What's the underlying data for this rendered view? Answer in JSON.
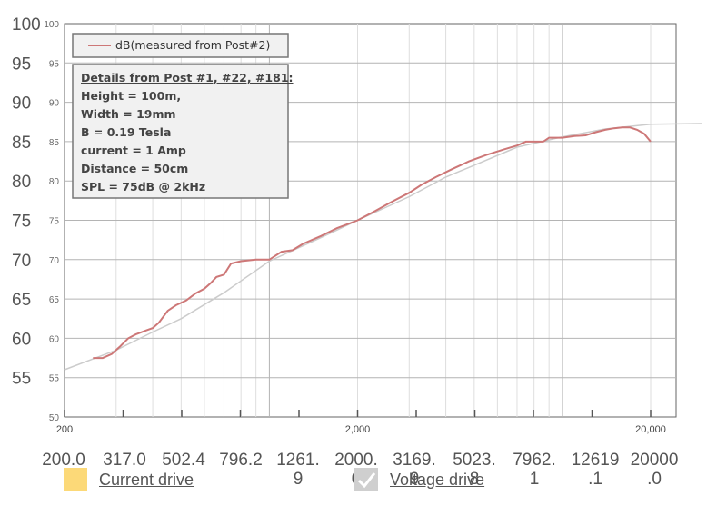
{
  "chart_data": {
    "type": "line",
    "x_scale": "log",
    "xlim": [
      200,
      20000
    ],
    "ylim": [
      50,
      100
    ],
    "grid": true,
    "y_ticks_big": [
      "100",
      "95",
      "90",
      "85",
      "80",
      "75",
      "70",
      "65",
      "60",
      "55"
    ],
    "y_ticks_small": [
      "100",
      "95",
      "90",
      "85",
      "80",
      "75",
      "70",
      "65",
      "60",
      "55",
      "50"
    ],
    "x_tick_labels": [
      {
        "value": 200,
        "label": "200"
      },
      {
        "value": 2000,
        "label": "2,000"
      },
      {
        "value": 20000,
        "label": "20,000"
      }
    ],
    "legend_placement": "top-left",
    "series": [
      {
        "name": "dB(measured from Post#2)",
        "color": "#cd7777",
        "points": [
          [
            250,
            57.5
          ],
          [
            270,
            57.5
          ],
          [
            290,
            58.0
          ],
          [
            310,
            59.0
          ],
          [
            330,
            60.0
          ],
          [
            350,
            60.5
          ],
          [
            380,
            61.0
          ],
          [
            400,
            61.3
          ],
          [
            420,
            62.0
          ],
          [
            450,
            63.5
          ],
          [
            480,
            64.2
          ],
          [
            520,
            64.8
          ],
          [
            560,
            65.7
          ],
          [
            600,
            66.3
          ],
          [
            630,
            67.0
          ],
          [
            660,
            67.8
          ],
          [
            700,
            68.1
          ],
          [
            740,
            69.5
          ],
          [
            800,
            69.8
          ],
          [
            900,
            70.0
          ],
          [
            1000,
            70.0
          ],
          [
            1100,
            71.0
          ],
          [
            1200,
            71.2
          ],
          [
            1300,
            72.0
          ],
          [
            1500,
            73.0
          ],
          [
            1700,
            74.0
          ],
          [
            2000,
            75.0
          ],
          [
            2300,
            76.2
          ],
          [
            2600,
            77.3
          ],
          [
            3000,
            78.5
          ],
          [
            3300,
            79.5
          ],
          [
            3700,
            80.5
          ],
          [
            4200,
            81.5
          ],
          [
            4800,
            82.5
          ],
          [
            5500,
            83.3
          ],
          [
            6300,
            84.0
          ],
          [
            7000,
            84.5
          ],
          [
            7500,
            85.0
          ],
          [
            8000,
            85.0
          ],
          [
            8600,
            85.0
          ],
          [
            9000,
            85.5
          ],
          [
            10000,
            85.5
          ],
          [
            11000,
            85.7
          ],
          [
            12000,
            85.8
          ],
          [
            13000,
            86.2
          ],
          [
            14000,
            86.5
          ],
          [
            15000,
            86.7
          ],
          [
            16000,
            86.8
          ],
          [
            17000,
            86.8
          ],
          [
            18000,
            86.5
          ],
          [
            19000,
            86.0
          ],
          [
            20000,
            85.0
          ]
        ]
      },
      {
        "color": "#cccccc",
        "points": [
          [
            200,
            56.0
          ],
          [
            300,
            58.5
          ],
          [
            400,
            60.8
          ],
          [
            500,
            62.5
          ],
          [
            700,
            65.8
          ],
          [
            1000,
            69.8
          ],
          [
            1500,
            72.8
          ],
          [
            2000,
            75.0
          ],
          [
            3000,
            78.0
          ],
          [
            4000,
            80.5
          ],
          [
            5000,
            82.0
          ],
          [
            7000,
            84.3
          ],
          [
            10000,
            85.6
          ],
          [
            14000,
            86.6
          ],
          [
            20000,
            87.2
          ],
          [
            30000,
            87.3
          ]
        ]
      }
    ],
    "details_box": {
      "title": "Details from Post #1, #22, #181:",
      "lines": [
        "Height = 100m,",
        "Width = 19mm",
        "B = 0.19 Tesla",
        "current = 1 Amp",
        "Distance = 50cm",
        "SPL = 75dB @ 2kHz"
      ]
    }
  },
  "x_big_labels": [
    [
      "200.0",
      ""
    ],
    [
      "317.0",
      ""
    ],
    [
      "502.4",
      ""
    ],
    [
      "796.2",
      ""
    ],
    [
      "1261.",
      "9"
    ],
    [
      "2000.",
      "0"
    ],
    [
      "3169.",
      "9"
    ],
    [
      "5023.",
      "8"
    ],
    [
      "7962.",
      "1"
    ],
    [
      "12619",
      ".1"
    ],
    [
      "20000",
      ".0"
    ]
  ],
  "controls": {
    "current_drive": {
      "label": "Current drive",
      "color": "#fcd978"
    },
    "voltage_drive": {
      "label": "Voltage drive",
      "color": "#cfcfcf",
      "icon": "checkmark-icon"
    }
  }
}
